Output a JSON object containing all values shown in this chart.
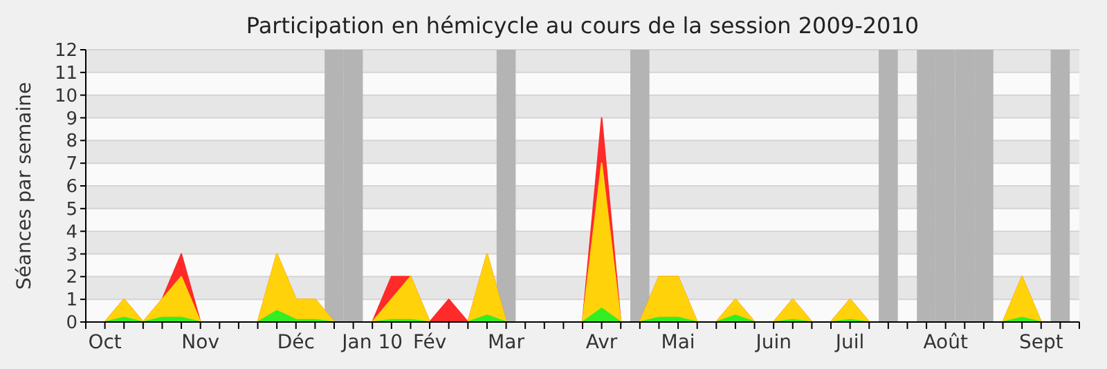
{
  "chart_data": {
    "type": "area",
    "title": "Participation en hémicycle au cours de la session 2009-2010",
    "ylabel": "Séances par semaine",
    "categories": [
      null,
      "Oct",
      null,
      null,
      null,
      null,
      "Nov",
      null,
      null,
      null,
      null,
      "Déc",
      null,
      null,
      null,
      "Jan 10",
      null,
      null,
      "Fév",
      null,
      null,
      null,
      "Mar",
      null,
      null,
      null,
      null,
      "Avr",
      null,
      null,
      null,
      "Mai",
      null,
      null,
      null,
      null,
      "Juin",
      null,
      null,
      null,
      "Juil",
      null,
      null,
      null,
      null,
      "Août",
      null,
      null,
      null,
      null,
      "Sept",
      null,
      null
    ],
    "ylim": [
      0,
      12
    ],
    "yticks": [
      0,
      1,
      2,
      3,
      4,
      5,
      6,
      7,
      8,
      9,
      10,
      11,
      12
    ],
    "grid": "y",
    "series": [
      {
        "type": "bar",
        "color": "#b4b4b4",
        "values": [
          null,
          null,
          null,
          null,
          null,
          null,
          null,
          null,
          null,
          null,
          null,
          null,
          null,
          12,
          12,
          null,
          null,
          null,
          null,
          null,
          null,
          null,
          12,
          null,
          null,
          null,
          null,
          null,
          null,
          12,
          null,
          null,
          null,
          null,
          null,
          null,
          null,
          null,
          null,
          null,
          null,
          null,
          12,
          null,
          12,
          12,
          12,
          12,
          null,
          null,
          null,
          12,
          null
        ]
      },
      {
        "color": "#ff2a2a",
        "values": [
          0,
          0,
          1,
          0,
          1,
          3,
          0,
          0,
          0,
          0,
          3,
          1,
          1,
          0,
          0,
          0,
          2,
          2,
          0,
          1,
          0,
          3,
          0,
          0,
          0,
          0,
          0,
          9,
          0,
          0,
          2,
          2,
          0,
          0,
          1,
          0,
          0,
          1,
          0,
          0,
          1,
          0,
          0,
          0,
          0,
          0,
          0,
          0,
          0,
          2,
          0,
          0,
          0
        ]
      },
      {
        "color": "#ffd20a",
        "values": [
          0,
          0,
          1,
          0,
          1,
          2,
          0,
          0,
          0,
          0,
          3,
          1,
          1,
          0,
          0,
          0,
          1,
          2,
          0,
          0,
          0,
          3,
          0,
          0,
          0,
          0,
          0,
          7,
          0,
          0,
          2,
          2,
          0,
          0,
          1,
          0,
          0,
          1,
          0,
          0,
          1,
          0,
          0,
          0,
          0,
          0,
          0,
          0,
          0,
          2,
          0,
          0,
          0
        ]
      },
      {
        "color": "#33ee22",
        "values": [
          0,
          0,
          0.2,
          0,
          0.2,
          0.2,
          0,
          0,
          0,
          0,
          0.5,
          0.1,
          0.1,
          0,
          0,
          0,
          0.1,
          0.1,
          0,
          0,
          0,
          0.3,
          0,
          0,
          0,
          0,
          0,
          0.6,
          0,
          0,
          0.2,
          0.2,
          0,
          0,
          0.3,
          0,
          0,
          0.1,
          0,
          0,
          0.1,
          0,
          0,
          0,
          0,
          0,
          0,
          0,
          0,
          0.2,
          0,
          0,
          0
        ]
      }
    ]
  }
}
